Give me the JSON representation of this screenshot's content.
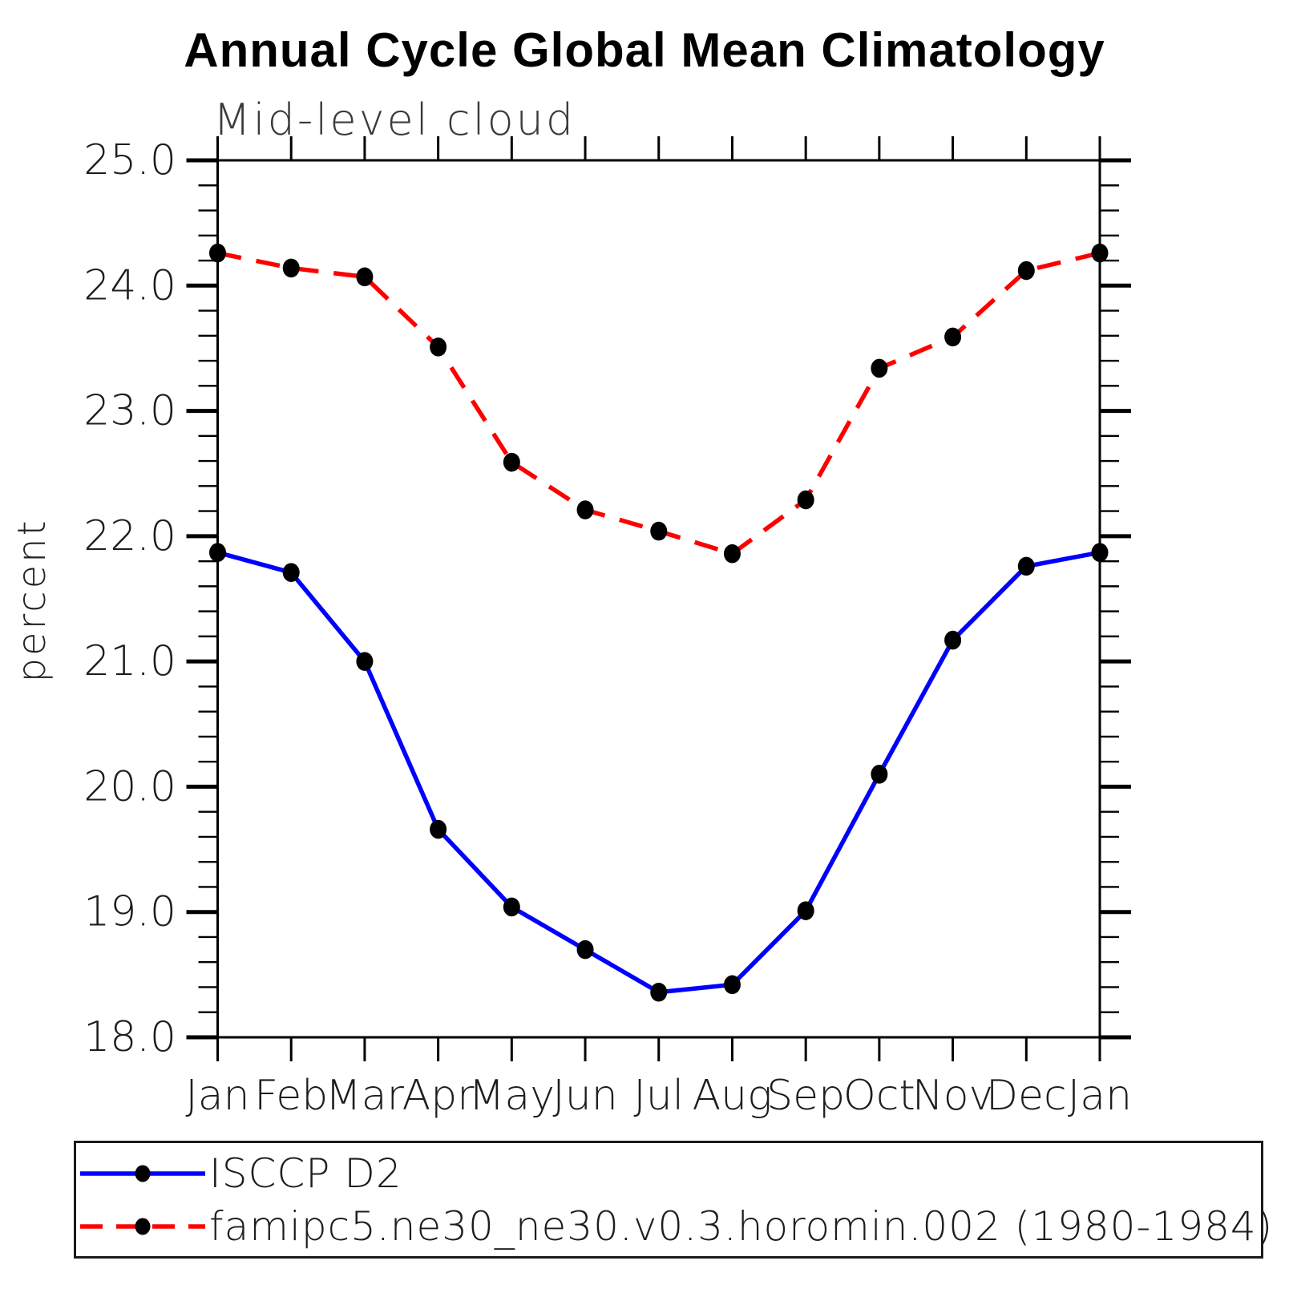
{
  "title": "Annual Cycle Global Mean Climatology",
  "subtitle": "Mid-level cloud",
  "ylabel": "percent",
  "colors": {
    "obs_line": "#0000ff",
    "model_line": "#ff0000",
    "marker": "#000000",
    "axis": "#000000"
  },
  "legend": {
    "position": "bottom",
    "entries": [
      {
        "label": "ISCCP D2",
        "color": "#0000ff",
        "style": "solid",
        "marker": "black-dot"
      },
      {
        "label": "famipc5.ne30_ne30.v0.3.horomin.002 (1980-1984)",
        "color": "#ff0000",
        "style": "dashed",
        "marker": "black-dot"
      }
    ]
  },
  "chart_data": {
    "type": "line",
    "title": "Annual Cycle Global Mean Climatology",
    "subtitle": "Mid-level cloud",
    "xlabel": "",
    "ylabel": "percent",
    "categories": [
      "Jan",
      "Feb",
      "Mar",
      "Apr",
      "May",
      "Jun",
      "Jul",
      "Aug",
      "Sep",
      "Oct",
      "Nov",
      "Dec",
      "Jan"
    ],
    "ylim": [
      18.0,
      25.0
    ],
    "ytick_major": 1.0,
    "ytick_minor": 0.2,
    "ytick_labels": [
      "18.0",
      "19.0",
      "20.0",
      "21.0",
      "22.0",
      "23.0",
      "24.0",
      "25.0"
    ],
    "grid": false,
    "legend_position": "bottom",
    "series": [
      {
        "name": "ISCCP D2",
        "color": "#0000ff",
        "line": "solid",
        "marker": "black-dot",
        "values": [
          21.87,
          21.71,
          21.0,
          19.66,
          19.04,
          18.7,
          18.36,
          18.42,
          19.01,
          20.1,
          21.17,
          21.76,
          21.87
        ]
      },
      {
        "name": "famipc5.ne30_ne30.v0.3.horomin.002 (1980-1984)",
        "color": "#ff0000",
        "line": "dashed",
        "marker": "black-dot",
        "values": [
          24.26,
          24.14,
          24.07,
          23.51,
          22.59,
          22.21,
          22.04,
          21.86,
          22.29,
          23.34,
          23.59,
          24.12,
          24.26
        ]
      }
    ]
  }
}
